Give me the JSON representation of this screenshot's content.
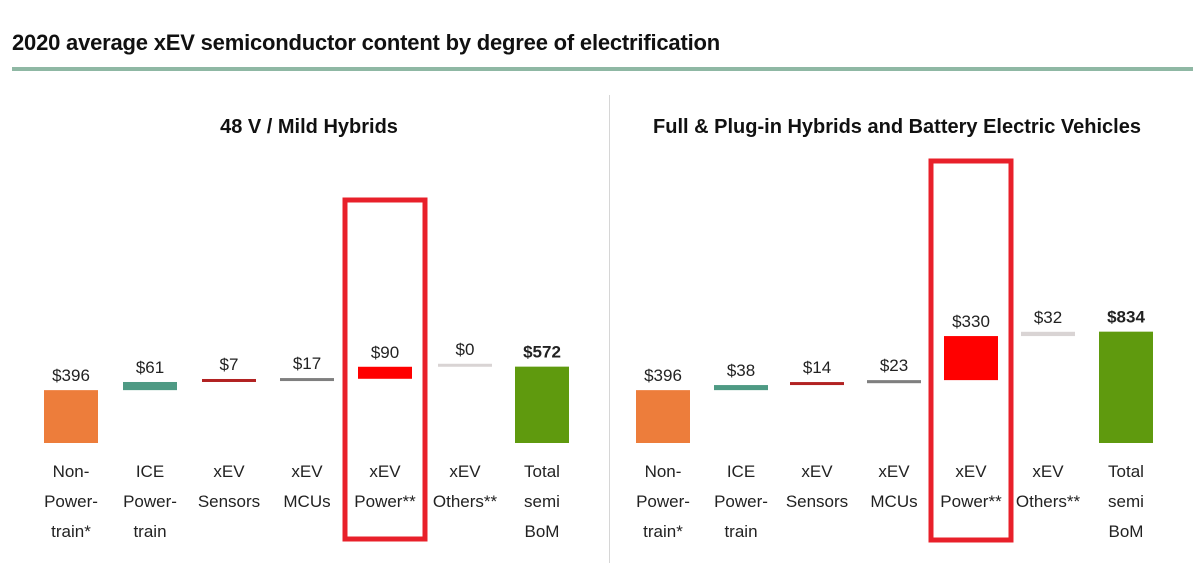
{
  "page": {
    "title": "2020 average xEV semiconductor content by degree of electrification"
  },
  "colors": {
    "non_powertrain": "#ed7d3b",
    "ice_powertrain": "#4e9a84",
    "xev_sensors": "#b22222",
    "xev_mcus": "#7f7f7f",
    "xev_power": "#ff0000",
    "xev_others": "#d9d4d4",
    "total": "#5f9a0e",
    "highlight_box": "#e8202a",
    "title_rule": "#8fb8a4"
  },
  "chart_data": [
    {
      "type": "bar",
      "subtype": "waterfall",
      "title": "48 V / Mild Hybrids",
      "categories": [
        [
          "Non-",
          "Power-",
          "train*"
        ],
        [
          "ICE",
          "Power-",
          "train"
        ],
        [
          "xEV",
          "Sensors"
        ],
        [
          "xEV",
          "MCUs"
        ],
        [
          "xEV",
          "Power**"
        ],
        [
          "xEV",
          "Others**"
        ],
        [
          "Total",
          "semi",
          "BoM"
        ]
      ],
      "values": [
        396,
        61,
        7,
        17,
        90,
        0,
        572
      ],
      "value_labels": [
        "$396",
        "$61",
        "$7",
        "$17",
        "$90",
        "$0",
        "$572"
      ],
      "bar_kind": [
        "base",
        "delta",
        "delta",
        "delta",
        "delta",
        "delta",
        "total"
      ],
      "highlighted_category": "xEV Power**",
      "ylim": [
        0,
        900
      ],
      "grid": false,
      "legend": "none"
    },
    {
      "type": "bar",
      "subtype": "waterfall",
      "title": "Full & Plug-in Hybrids and Battery Electric Vehicles",
      "categories": [
        [
          "Non-",
          "Power-",
          "train*"
        ],
        [
          "ICE",
          "Power-",
          "train"
        ],
        [
          "xEV",
          "Sensors"
        ],
        [
          "xEV",
          "MCUs"
        ],
        [
          "xEV",
          "Power**"
        ],
        [
          "xEV",
          "Others**"
        ],
        [
          "Total",
          "semi",
          "BoM"
        ]
      ],
      "values": [
        396,
        38,
        14,
        23,
        330,
        32,
        834
      ],
      "value_labels": [
        "$396",
        "$38",
        "$14",
        "$23",
        "$330",
        "$32",
        "$834"
      ],
      "bar_kind": [
        "base",
        "delta",
        "delta",
        "delta",
        "delta",
        "delta",
        "total"
      ],
      "highlighted_category": "xEV Power**",
      "ylim": [
        0,
        900
      ],
      "grid": false,
      "legend": "none"
    }
  ]
}
